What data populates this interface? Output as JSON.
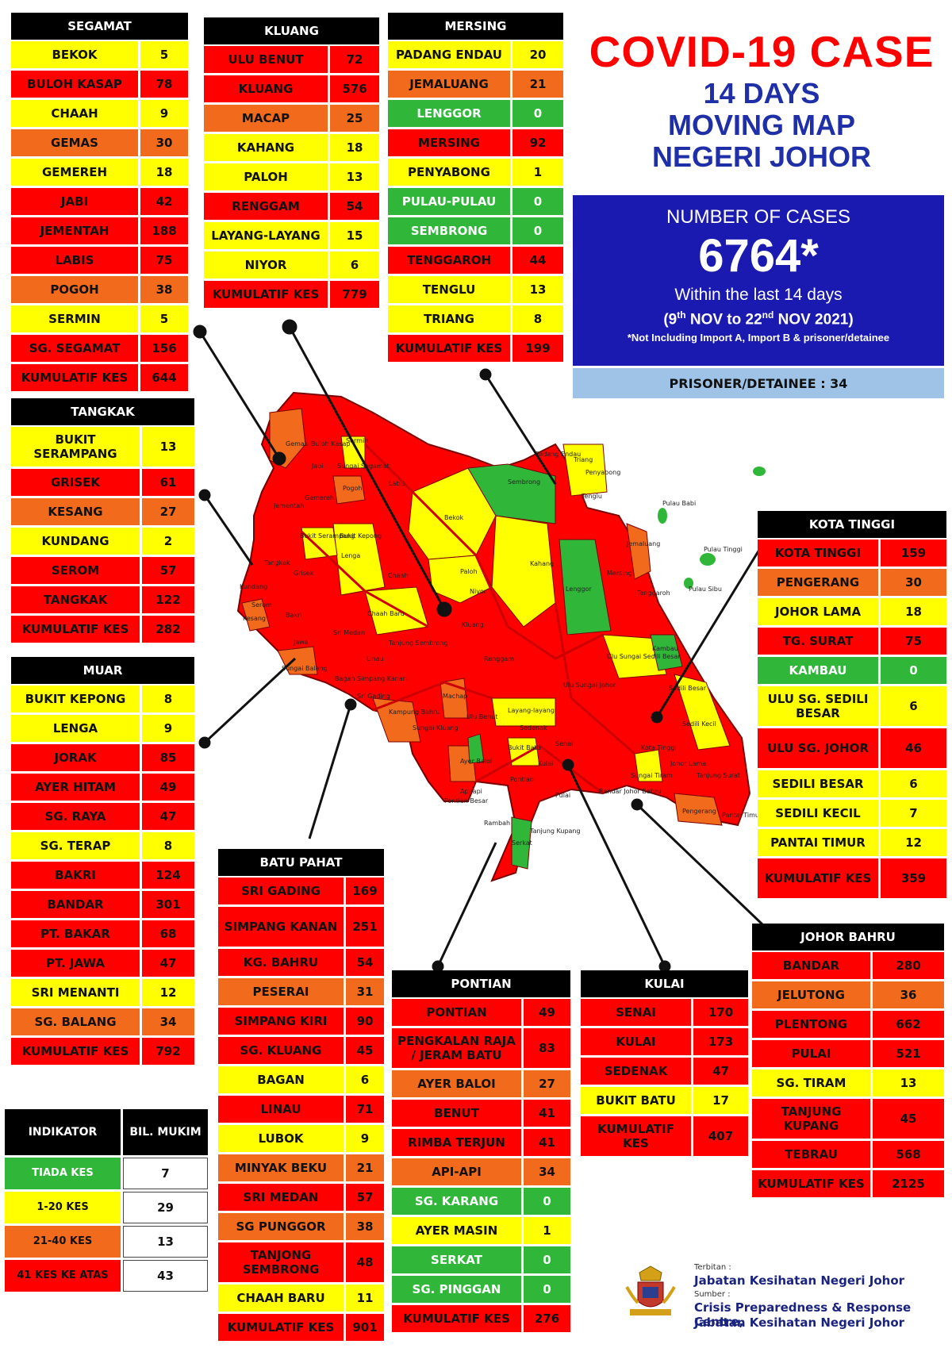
{
  "title": {
    "main": "COVID-19 CASE",
    "line2": "14 DAYS",
    "line3": "MOVING MAP",
    "line4": "NEGERI JOHOR"
  },
  "cases": {
    "label": "NUMBER OF CASES",
    "total": "6764*",
    "period": "Within the last 14 days",
    "range_open": "(9",
    "range_sup1": "th",
    "range_mid": " NOV to 22",
    "range_sup2": "nd",
    "range_end": " NOV 2021)",
    "note": "*Not Including Import A, Import B & prisoner/detainee",
    "prisoner": "PRISONER/DETAINEE : 34"
  },
  "colors": {
    "red": "#ff0000",
    "orange": "#f26a1b",
    "yellow": "#ffff00",
    "green": "#30b73a",
    "header": "#000000",
    "blue_box": "#1a1ab0",
    "prisoner_box": "#9ec3e6",
    "title_red": "#ff0000",
    "title_blue": "#1f2fa8"
  },
  "districts": [
    {
      "id": "segamat",
      "name": "SEGAMAT",
      "rows": [
        {
          "name": "BEKOK",
          "value": "5",
          "level": "yellow"
        },
        {
          "name": "BULOH KASAP",
          "value": "78",
          "level": "red"
        },
        {
          "name": "CHAAH",
          "value": "9",
          "level": "yellow"
        },
        {
          "name": "GEMAS",
          "value": "30",
          "level": "orange"
        },
        {
          "name": "GEMEREH",
          "value": "18",
          "level": "yellow"
        },
        {
          "name": "JABI",
          "value": "42",
          "level": "red"
        },
        {
          "name": "JEMENTAH",
          "value": "188",
          "level": "red"
        },
        {
          "name": "LABIS",
          "value": "75",
          "level": "red"
        },
        {
          "name": "POGOH",
          "value": "38",
          "level": "orange"
        },
        {
          "name": "SERMIN",
          "value": "5",
          "level": "yellow"
        },
        {
          "name": "SG. SEGAMAT",
          "value": "156",
          "level": "red"
        },
        {
          "name": "KUMULATIF KES",
          "value": "644",
          "level": "red"
        }
      ]
    },
    {
      "id": "kluang",
      "name": "KLUANG",
      "rows": [
        {
          "name": "ULU BENUT",
          "value": "72",
          "level": "red"
        },
        {
          "name": "KLUANG",
          "value": "576",
          "level": "red"
        },
        {
          "name": "MACAP",
          "value": "25",
          "level": "orange"
        },
        {
          "name": "KAHANG",
          "value": "18",
          "level": "yellow"
        },
        {
          "name": "PALOH",
          "value": "13",
          "level": "yellow"
        },
        {
          "name": "RENGGAM",
          "value": "54",
          "level": "red"
        },
        {
          "name": "LAYANG-LAYANG",
          "value": "15",
          "level": "yellow"
        },
        {
          "name": "NIYOR",
          "value": "6",
          "level": "yellow"
        },
        {
          "name": "KUMULATIF KES",
          "value": "779",
          "level": "red"
        }
      ]
    },
    {
      "id": "mersing",
      "name": "MERSING",
      "rows": [
        {
          "name": "PADANG ENDAU",
          "value": "20",
          "level": "yellow"
        },
        {
          "name": "JEMALUANG",
          "value": "21",
          "level": "orange"
        },
        {
          "name": "LENGGOR",
          "value": "0",
          "level": "green"
        },
        {
          "name": "MERSING",
          "value": "92",
          "level": "red"
        },
        {
          "name": "PENYABONG",
          "value": "1",
          "level": "yellow"
        },
        {
          "name": "PULAU-PULAU",
          "value": "0",
          "level": "green"
        },
        {
          "name": "SEMBRONG",
          "value": "0",
          "level": "green"
        },
        {
          "name": "TENGGAROH",
          "value": "44",
          "level": "red"
        },
        {
          "name": "TENGLU",
          "value": "13",
          "level": "yellow"
        },
        {
          "name": "TRIANG",
          "value": "8",
          "level": "yellow"
        },
        {
          "name": "KUMULATIF KES",
          "value": "199",
          "level": "red"
        }
      ]
    },
    {
      "id": "tangkak",
      "name": "TANGKAK",
      "rows": [
        {
          "name": "BUKIT SERAMPANG",
          "value": "13",
          "level": "yellow"
        },
        {
          "name": "GRISEK",
          "value": "61",
          "level": "red"
        },
        {
          "name": "KESANG",
          "value": "27",
          "level": "orange"
        },
        {
          "name": "KUNDANG",
          "value": "2",
          "level": "yellow"
        },
        {
          "name": "SEROM",
          "value": "57",
          "level": "red"
        },
        {
          "name": "TANGKAK",
          "value": "122",
          "level": "red"
        },
        {
          "name": "KUMULATIF KES",
          "value": "282",
          "level": "red"
        }
      ]
    },
    {
      "id": "muar",
      "name": "MUAR",
      "rows": [
        {
          "name": "BUKIT KEPONG",
          "value": "8",
          "level": "yellow"
        },
        {
          "name": "LENGA",
          "value": "9",
          "level": "yellow"
        },
        {
          "name": "JORAK",
          "value": "85",
          "level": "red"
        },
        {
          "name": "AYER HITAM",
          "value": "49",
          "level": "red"
        },
        {
          "name": "SG. RAYA",
          "value": "47",
          "level": "red"
        },
        {
          "name": "SG. TERAP",
          "value": "8",
          "level": "yellow"
        },
        {
          "name": "BAKRI",
          "value": "124",
          "level": "red"
        },
        {
          "name": "BANDAR",
          "value": "301",
          "level": "red"
        },
        {
          "name": "PT. BAKAR",
          "value": "68",
          "level": "red"
        },
        {
          "name": "PT. JAWA",
          "value": "47",
          "level": "red"
        },
        {
          "name": "SRI MENANTI",
          "value": "12",
          "level": "yellow"
        },
        {
          "name": "SG. BALANG",
          "value": "34",
          "level": "orange"
        },
        {
          "name": "KUMULATIF KES",
          "value": "792",
          "level": "red"
        }
      ]
    },
    {
      "id": "batupahat",
      "name": "BATU PAHAT",
      "rows": [
        {
          "name": "SRI GADING",
          "value": "169",
          "level": "red"
        },
        {
          "name": "SIMPANG KANAN",
          "value": "251",
          "level": "red"
        },
        {
          "name": "KG. BAHRU",
          "value": "54",
          "level": "red"
        },
        {
          "name": "PESERAI",
          "value": "31",
          "level": "orange"
        },
        {
          "name": "SIMPANG KIRI",
          "value": "90",
          "level": "red"
        },
        {
          "name": "SG. KLUANG",
          "value": "45",
          "level": "red"
        },
        {
          "name": "BAGAN",
          "value": "6",
          "level": "yellow"
        },
        {
          "name": "LINAU",
          "value": "71",
          "level": "red"
        },
        {
          "name": "LUBOK",
          "value": "9",
          "level": "yellow"
        },
        {
          "name": "MINYAK BEKU",
          "value": "21",
          "level": "orange"
        },
        {
          "name": "SRI MEDAN",
          "value": "57",
          "level": "red"
        },
        {
          "name": "SG PUNGGOR",
          "value": "38",
          "level": "orange"
        },
        {
          "name": "TANJONG SEMBRONG",
          "value": "48",
          "level": "red"
        },
        {
          "name": "CHAAH BARU",
          "value": "11",
          "level": "yellow"
        },
        {
          "name": "KUMULATIF KES",
          "value": "901",
          "level": "red"
        }
      ]
    },
    {
      "id": "pontian",
      "name": "PONTIAN",
      "rows": [
        {
          "name": "PONTIAN",
          "value": "49",
          "level": "red"
        },
        {
          "name": "PENGKALAN RAJA / JERAM BATU",
          "value": "83",
          "level": "red"
        },
        {
          "name": "AYER BALOI",
          "value": "27",
          "level": "orange"
        },
        {
          "name": "BENUT",
          "value": "41",
          "level": "red"
        },
        {
          "name": "RIMBA TERJUN",
          "value": "41",
          "level": "red"
        },
        {
          "name": "API-API",
          "value": "34",
          "level": "orange"
        },
        {
          "name": "SG. KARANG",
          "value": "0",
          "level": "green"
        },
        {
          "name": "AYER MASIN",
          "value": "1",
          "level": "yellow"
        },
        {
          "name": "SERKAT",
          "value": "0",
          "level": "green"
        },
        {
          "name": "SG. PINGGAN",
          "value": "0",
          "level": "green"
        },
        {
          "name": "KUMULATIF KES",
          "value": "276",
          "level": "red"
        }
      ]
    },
    {
      "id": "kulai",
      "name": "KULAI",
      "rows": [
        {
          "name": "SENAI",
          "value": "170",
          "level": "red"
        },
        {
          "name": "KULAI",
          "value": "173",
          "level": "red"
        },
        {
          "name": "SEDENAK",
          "value": "47",
          "level": "red"
        },
        {
          "name": "BUKIT BATU",
          "value": "17",
          "level": "yellow"
        },
        {
          "name": "KUMULATIF KES",
          "value": "407",
          "level": "red"
        }
      ]
    },
    {
      "id": "kotatinggi",
      "name": "KOTA TINGGI",
      "rows": [
        {
          "name": "KOTA TINGGI",
          "value": "159",
          "level": "red"
        },
        {
          "name": "PENGERANG",
          "value": "30",
          "level": "orange"
        },
        {
          "name": "JOHOR LAMA",
          "value": "18",
          "level": "yellow"
        },
        {
          "name": "TG. SURAT",
          "value": "75",
          "level": "red"
        },
        {
          "name": "KAMBAU",
          "value": "0",
          "level": "green"
        },
        {
          "name": "ULU SG. SEDILI BESAR",
          "value": "6",
          "level": "yellow"
        },
        {
          "name": "ULU  SG. JOHOR",
          "value": "46",
          "level": "red"
        },
        {
          "name": "SEDILI BESAR",
          "value": "6",
          "level": "yellow"
        },
        {
          "name": "SEDILI KECIL",
          "value": "7",
          "level": "yellow"
        },
        {
          "name": "PANTAI TIMUR",
          "value": "12",
          "level": "yellow"
        },
        {
          "name": "KUMULATIF KES",
          "value": "359",
          "level": "red"
        }
      ]
    },
    {
      "id": "johorbahru",
      "name": "JOHOR BAHRU",
      "rows": [
        {
          "name": "BANDAR",
          "value": "280",
          "level": "red"
        },
        {
          "name": "JELUTONG",
          "value": "36",
          "level": "orange"
        },
        {
          "name": "PLENTONG",
          "value": "662",
          "level": "red"
        },
        {
          "name": "PULAI",
          "value": "521",
          "level": "red"
        },
        {
          "name": "SG. TIRAM",
          "value": "13",
          "level": "yellow"
        },
        {
          "name": "TANJUNG KUPANG",
          "value": "45",
          "level": "red"
        },
        {
          "name": "TEBRAU",
          "value": "568",
          "level": "red"
        },
        {
          "name": "KUMULATIF KES",
          "value": "2125",
          "level": "red"
        }
      ]
    }
  ],
  "legend": {
    "col1": "INDIKATOR",
    "col2": "BIL. MUKIM",
    "rows": [
      {
        "label": "TIADA KES",
        "value": "7",
        "level": "green"
      },
      {
        "label": "1-20 KES",
        "value": "29",
        "level": "yellow"
      },
      {
        "label": "21-40 KES",
        "value": "13",
        "level": "orange"
      },
      {
        "label": "41 KES KE ATAS",
        "value": "43",
        "level": "red"
      }
    ]
  },
  "map_labels": {
    "gemas": "Gemas",
    "buloh_kasap": "Buloh Kasap",
    "sermin": "Sermin",
    "gemereh": "Gemereh",
    "jementah": "Jementah",
    "sg_segamat": "Sungai Segamat",
    "pogoh": "Pogoh",
    "jabi": "Jabi",
    "labis": "Labis",
    "bekok": "Bekok",
    "sembrong": "Sembrong",
    "padang_endau": "Padang Endau",
    "triang": "Triang",
    "penyabong": "Penyabong",
    "tenglu": "Tenglu",
    "pulau_babi": "Pulau Babi",
    "pulau_tinggi": "Pulau Tinggi",
    "pulau_sibu": "Pulau Sibu",
    "tangkak": "Tangkak",
    "bukit_serampang": "Bukit Serampang",
    "bukit_kepong": "Bukit Kepong",
    "grisek": "Grisek",
    "lenga": "Lenga",
    "chaah": "Chaah",
    "paloh": "Paloh",
    "kahang": "Kahang",
    "niyor": "Niyor",
    "jemaluang": "Jemaluang",
    "mersing": "Mersing",
    "lenggor": "Lenggor",
    "tenggaroh": "Tenggaroh",
    "kundang": "Kundang",
    "serom": "Serom",
    "kesang": "Kesang",
    "bakri": "Bakri",
    "jawa": "Jawa",
    "chaah_baru": "Chaah Baru",
    "kluang": "Kluang",
    "sri_medan": "Sri Medan",
    "tanjung_sembrong": "Tanjung Sembrong",
    "linau": "Linau",
    "renggam": "Renggam",
    "ulu_sg_sedili_besar": "Ulu Sungai Sedili Besar",
    "kambau": "Kambau",
    "sedili_besar": "Sedili Besar",
    "sungai_balang": "Sungai Balang",
    "bagan": "Bagan",
    "simpang_kanan": "Simpang Kanan",
    "sri_gading": "Sri Gading",
    "machap": "Machap",
    "ulu_sungai_johor": "Ulu Sungai Johor",
    "sedili_kecil": "Sedili Kecil",
    "kampung_bahru": "Kampung Bahru",
    "sungai_kluang": "Sungai Kluang",
    "ulu_benut": "Ulu Benut",
    "layang_layang": "Layang-layang",
    "sedenak": "Sedenak",
    "senai": "Senai",
    "bukit_batu": "Bukit Batu",
    "ayer_baloi": "Ayer Baloi",
    "kota_tinggi": "Kota Tinggi",
    "johor_lama": "Johor Lama",
    "tanjung_surat": "Tanjung Surat",
    "pontian": "Pontian",
    "kulai": "Kulai",
    "pulai": "Pulai",
    "sungai_tiram": "Sungai Tiram",
    "pengerang": "Pengerang",
    "pantai_timur": "Pantai Timur",
    "api_api": "Api-api",
    "tanjung_kupang": "Tanjung Kupang",
    "bandar_johor_bahru": "Bandar Johor Bahru",
    "pontian_besar": "Pontian Besar",
    "rambah": "Rambah",
    "serkat": "Serkat"
  },
  "credits": {
    "terbitan_label": "Terbitan :",
    "terbitan_value": "Jabatan Kesihatan Negeri Johor",
    "sumber_label": "Sumber :",
    "sumber_value1": "Crisis Preparedness & Response Centre,",
    "sumber_value2": "Jabatan Kesihatan Negeri Johor",
    "crest_icon": "johor-crest-icon"
  }
}
